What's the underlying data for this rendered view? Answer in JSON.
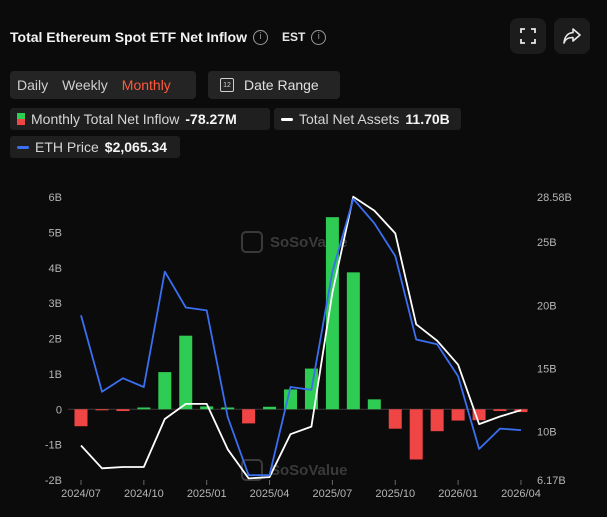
{
  "header": {
    "title": "Total Ethereum Spot ETF Net Inflow",
    "timezone": "EST"
  },
  "periods": [
    "Daily",
    "Weekly",
    "Monthly"
  ],
  "active_period": "Monthly",
  "date_range_label": "Date Range",
  "calendar_day": "12",
  "legend": {
    "inflow_label": "Monthly Total Net Inflow",
    "inflow_value": "-78.27M",
    "assets_label": "Total Net Assets",
    "assets_value": "11.70B",
    "eth_label": "ETH Price",
    "eth_value": "$2,065.34"
  },
  "watermark": "SoSoValue",
  "colors": {
    "positive": "#2ecc53",
    "negative": "#f04545",
    "assets_line": "#ffffff",
    "eth_line": "#3a6ff0",
    "active_tab": "#ff5a3c"
  },
  "chart_data": {
    "type": "bar",
    "x_ticks": [
      "2024/07",
      "2024/10",
      "2025/01",
      "2025/04",
      "2025/07",
      "2025/10",
      "2026/01",
      "2026/04"
    ],
    "left_axis_ticks": [
      "6B",
      "5B",
      "4B",
      "3B",
      "2B",
      "1B",
      "0",
      "-1B",
      "-2B"
    ],
    "right_axis_ticks": [
      "28.58B",
      "25B",
      "20B",
      "15B",
      "10B",
      "6.17B"
    ],
    "left_ylim": [
      -2,
      6
    ],
    "right_ylim": [
      6.17,
      28.58
    ],
    "months": [
      "2024/07",
      "2024/08",
      "2024/09",
      "2024/10",
      "2024/11",
      "2024/12",
      "2025/01",
      "2025/02",
      "2025/03",
      "2025/04",
      "2025/05",
      "2025/06",
      "2025/07",
      "2025/08",
      "2025/09",
      "2025/10",
      "2025/11",
      "2025/12",
      "2026/01",
      "2026/02",
      "2026/03",
      "2026/04"
    ],
    "series": [
      {
        "name": "Monthly Total Net Inflow",
        "unit": "B",
        "values": [
          -0.48,
          -0.03,
          -0.05,
          0.05,
          1.05,
          2.08,
          0.08,
          0.05,
          -0.4,
          0.07,
          0.56,
          1.15,
          5.43,
          3.87,
          0.28,
          -0.55,
          -1.42,
          -0.62,
          -0.32,
          -0.31,
          -0.05,
          -0.08
        ]
      },
      {
        "name": "Total Net Assets",
        "unit": "B",
        "values": [
          8.9,
          7.1,
          7.2,
          7.2,
          11.0,
          12.2,
          12.2,
          8.6,
          6.3,
          6.4,
          9.8,
          10.4,
          21.0,
          28.6,
          27.5,
          25.7,
          18.5,
          17.2,
          15.3,
          10.6,
          11.2,
          11.7
        ]
      },
      {
        "name": "ETH Price",
        "unit": "USD",
        "values": [
          3250,
          2460,
          2600,
          2510,
          3700,
          3330,
          3300,
          2200,
          1600,
          1600,
          2510,
          2480,
          3700,
          4450,
          4200,
          3860,
          3000,
          2950,
          2620,
          1870,
          2080,
          2065
        ]
      }
    ],
    "eth_axis_hidden": true,
    "eth_range": [
      1550,
      4470
    ],
    "grid": false
  }
}
